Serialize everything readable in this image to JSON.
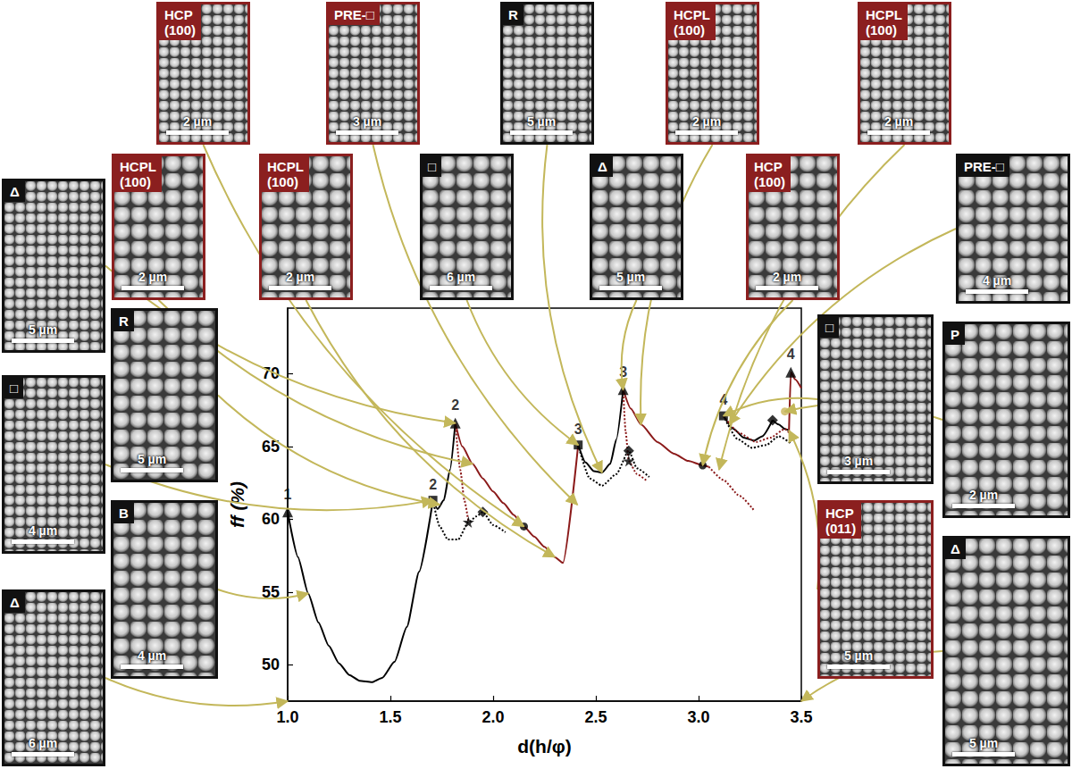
{
  "chart_data": {
    "type": "line",
    "x_label": "d(h/φ)",
    "y_label": "ff (%)",
    "xlim": [
      1.0,
      3.5
    ],
    "xticks": [
      {
        "value": 1,
        "label": "1.0"
      },
      {
        "value": 1.5,
        "label": "1.5"
      },
      {
        "value": 2,
        "label": "2.0"
      },
      {
        "value": 2.5,
        "label": "2.5"
      },
      {
        "value": 3,
        "label": "3.0"
      },
      {
        "value": 3.5,
        "label": "3.5"
      }
    ],
    "ylim": [
      47.5,
      74.5
    ],
    "yticks": [
      50,
      55,
      60,
      65,
      70
    ],
    "grid": false,
    "series": [
      {
        "type": "line",
        "color": "#000000",
        "line_style": "solid",
        "x": [
          1.0,
          1.05,
          1.1,
          1.15,
          1.2,
          1.25,
          1.3,
          1.35,
          1.41,
          1.46,
          1.52,
          1.58,
          1.64,
          1.707
        ],
        "values": [
          60.5,
          57.4,
          54.9,
          52.9,
          51.3,
          50.1,
          49.3,
          48.9,
          48.8,
          49.1,
          50.2,
          52.6,
          56.4,
          61.3
        ]
      },
      {
        "type": "line",
        "color": "#000000",
        "line_style": "solid",
        "x": [
          1.707,
          1.73,
          1.76,
          1.79,
          1.816
        ],
        "values": [
          61.3,
          60.7,
          61.3,
          63.4,
          66.6
        ]
      },
      {
        "type": "line",
        "color": "#8b1a1a",
        "line_style": "solid",
        "x": [
          1.816,
          1.85,
          1.9,
          1.95,
          2.0,
          2.05,
          2.1,
          2.15,
          2.2,
          2.25,
          2.3,
          2.34,
          2.414
        ],
        "values": [
          66.6,
          65.0,
          63.8,
          62.8,
          61.9,
          61.1,
          60.3,
          59.5,
          58.8,
          58.1,
          57.4,
          57.0,
          65.1
        ]
      },
      {
        "type": "line",
        "color": "#000000",
        "line_style": "dotted",
        "x": [
          1.707,
          1.74,
          1.78,
          1.83,
          1.88,
          1.92,
          1.95,
          2.0,
          2.06
        ],
        "values": [
          61.3,
          59.5,
          58.6,
          58.6,
          59.8,
          60.2,
          60.5,
          59.6,
          59.1
        ]
      },
      {
        "type": "line",
        "color": "#8b1a1a",
        "line_style": "dotted",
        "x": [
          1.816,
          1.84,
          1.86,
          1.88
        ],
        "values": [
          66.6,
          63.4,
          61.3,
          59.8
        ]
      },
      {
        "type": "line",
        "color": "#000000",
        "line_style": "solid",
        "x": [
          2.414,
          2.45,
          2.49,
          2.53,
          2.57,
          2.6,
          2.633
        ],
        "values": [
          65.1,
          63.9,
          63.3,
          63.2,
          63.8,
          65.5,
          68.9
        ]
      },
      {
        "type": "line",
        "color": "#8b1a1a",
        "line_style": "solid",
        "x": [
          2.633,
          2.67,
          2.72,
          2.8,
          2.88,
          2.95,
          3.02,
          3.05
        ],
        "values": [
          68.9,
          67.6,
          66.5,
          65.3,
          64.5,
          64.0,
          63.7,
          63.6
        ]
      },
      {
        "type": "line",
        "color": "#000000",
        "line_style": "dotted",
        "x": [
          2.414,
          2.47,
          2.53,
          2.6,
          2.66,
          2.7,
          2.76
        ],
        "values": [
          65.1,
          62.8,
          62.3,
          63.1,
          64.7,
          63.5,
          62.9
        ]
      },
      {
        "type": "line",
        "color": "#8b1a1a",
        "line_style": "dotted",
        "x": [
          2.633,
          2.645,
          2.66,
          2.7,
          2.75
        ],
        "values": [
          68.9,
          66.0,
          64.0,
          63.1,
          62.6
        ]
      },
      {
        "type": "line",
        "color": "#8b1a1a",
        "line_style": "dotted",
        "x": [
          3.05,
          3.12,
          3.2,
          3.27
        ],
        "values": [
          63.6,
          62.7,
          61.6,
          60.6
        ]
      },
      {
        "type": "line",
        "color": "#000000",
        "line_style": "solid",
        "x": [
          3.121,
          3.17,
          3.22,
          3.27,
          3.31,
          3.36
        ],
        "values": [
          67.1,
          66.2,
          65.6,
          65.4,
          65.7,
          66.8
        ]
      },
      {
        "type": "line",
        "color": "#000000",
        "line_style": "solid",
        "x": [
          3.36,
          3.39,
          3.42,
          3.44
        ],
        "values": [
          66.8,
          66.5,
          66.2,
          66.1
        ]
      },
      {
        "type": "line",
        "color": "#8b1a1a",
        "line_style": "solid",
        "x": [
          3.44,
          3.449,
          3.47,
          3.5
        ],
        "values": [
          66.1,
          70.1,
          69.6,
          69.0
        ]
      },
      {
        "type": "line",
        "color": "#000000",
        "line_style": "dotted",
        "x": [
          3.121,
          3.19,
          3.26,
          3.33,
          3.39,
          3.45
        ],
        "values": [
          67.1,
          65.5,
          64.9,
          65.1,
          65.7,
          65.2
        ]
      },
      {
        "type": "line",
        "color": "#8b1a1a",
        "line_style": "dotted",
        "x": [
          3.121,
          3.2,
          3.28,
          3.35,
          3.42,
          3.46
        ],
        "values": [
          67.1,
          65.9,
          65.3,
          65.6,
          66.2,
          65.6
        ]
      },
      {
        "type": "scatter",
        "marker": "triangle",
        "color": "#000000",
        "x": [
          1.0,
          1.816,
          2.633,
          3.449
        ],
        "values": [
          60.5,
          66.6,
          68.9,
          70.1
        ],
        "labels": [
          "1",
          "2",
          "3",
          "4"
        ]
      },
      {
        "type": "scatter",
        "marker": "square",
        "color": "#000000",
        "x": [
          1.707,
          2.414,
          3.121
        ],
        "values": [
          61.3,
          65.1,
          67.1
        ],
        "labels": [
          "2",
          "3",
          "4"
        ]
      },
      {
        "type": "scatter",
        "marker": "circle",
        "color": "#000000",
        "x": [
          2.15,
          3.02
        ],
        "values": [
          59.5,
          63.7
        ]
      },
      {
        "type": "scatter",
        "marker": "diamond",
        "color": "#000000",
        "x": [
          1.95,
          2.66,
          3.36
        ],
        "values": [
          60.5,
          64.7,
          66.8
        ]
      },
      {
        "type": "scatter",
        "marker": "star",
        "color": "#000000",
        "x": [
          1.88,
          2.66
        ],
        "values": [
          59.8,
          64.0
        ]
      },
      {
        "type": "scatter",
        "marker": "circle",
        "color": "#c9b458",
        "x": [
          3.42
        ],
        "values": [
          67.4
        ]
      }
    ]
  },
  "insets": [
    {
      "label": "Δ",
      "color": "#111111",
      "scale_bar": "5 µm",
      "target": [
        1.816,
        66.6
      ]
    },
    {
      "label": "R",
      "color": "#111111",
      "scale_bar": "5 µm",
      "target": [
        1.74,
        61.0
      ]
    },
    {
      "label": "□",
      "color": "#111111",
      "scale_bar": "4 µm",
      "target": [
        1.707,
        61.3
      ]
    },
    {
      "label": "B",
      "color": "#111111",
      "scale_bar": "4 µm",
      "target": [
        1.1,
        54.9
      ]
    },
    {
      "label": "Δ",
      "color": "#111111",
      "scale_bar": "6 µm",
      "target": [
        1.0,
        47.5
      ]
    },
    {
      "label": "HCPL (100)",
      "color": "#8b1f1f",
      "scale_bar": "2 µm",
      "target": [
        1.9,
        63.8
      ]
    },
    {
      "label": "HCP (100)",
      "color": "#8b1f1f",
      "scale_bar": "2 µm",
      "target": [
        2.15,
        59.5
      ]
    },
    {
      "label": "HCPL (100)",
      "color": "#8b1f1f",
      "scale_bar": "2 µm",
      "target": [
        2.3,
        57.4
      ]
    },
    {
      "label": "PRE-□",
      "color": "#8b1f1f",
      "scale_bar": "3 µm",
      "target": [
        2.41,
        61.0
      ]
    },
    {
      "label": "□",
      "color": "#111111",
      "scale_bar": "6 µm",
      "target": [
        2.414,
        65.1
      ]
    },
    {
      "label": "R",
      "color": "#111111",
      "scale_bar": "5 µm",
      "target": [
        2.53,
        63.2
      ]
    },
    {
      "label": "Δ",
      "color": "#111111",
      "scale_bar": "5 µm",
      "target": [
        2.633,
        68.9
      ]
    },
    {
      "label": "HCPL (100)",
      "color": "#8b1f1f",
      "scale_bar": "2 µm",
      "target": [
        2.72,
        66.5
      ]
    },
    {
      "label": "HCP (100)",
      "color": "#8b1f1f",
      "scale_bar": "2 µm",
      "target": [
        3.02,
        63.7
      ]
    },
    {
      "label": "HCPL (100)",
      "color": "#8b1f1f",
      "scale_bar": "2 µm",
      "target": [
        3.1,
        63.4
      ]
    },
    {
      "label": "PRE-□",
      "color": "#111111",
      "scale_bar": "4 µm",
      "target": [
        3.15,
        66.5
      ]
    },
    {
      "label": "□",
      "color": "#111111",
      "scale_bar": "3 µm",
      "target": [
        3.121,
        67.1
      ]
    },
    {
      "label": "P",
      "color": "#111111",
      "scale_bar": "2 µm",
      "target": [
        3.42,
        67.4
      ]
    },
    {
      "label": "HCP (011)",
      "color": "#8b1f1f",
      "scale_bar": "5 µm",
      "target": [
        3.44,
        66.1
      ]
    },
    {
      "label": "Δ",
      "color": "#111111",
      "scale_bar": "5 µm",
      "target": [
        3.5,
        47.5
      ]
    }
  ]
}
